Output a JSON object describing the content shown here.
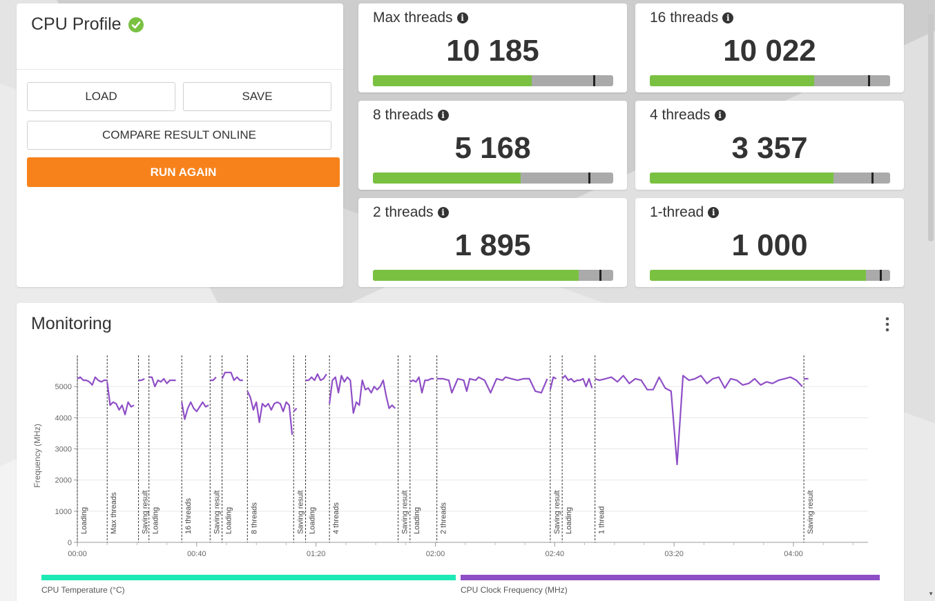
{
  "profile": {
    "title": "CPU Profile",
    "load_label": "LOAD",
    "save_label": "SAVE",
    "compare_label": "COMPARE RESULT ONLINE",
    "run_again_label": "RUN AGAIN"
  },
  "scores": [
    {
      "label": "Max threads",
      "value": "10 185",
      "fill": 0.66,
      "marker": 0.92
    },
    {
      "label": "16 threads",
      "value": "10 022",
      "fill": 0.685,
      "marker": 0.91
    },
    {
      "label": "8 threads",
      "value": "5 168",
      "fill": 0.615,
      "marker": 0.9
    },
    {
      "label": "4 threads",
      "value": "3 357",
      "fill": 0.765,
      "marker": 0.925
    },
    {
      "label": "2 threads",
      "value": "1 895",
      "fill": 0.855,
      "marker": 0.945
    },
    {
      "label": "1-thread",
      "value": "1 000",
      "fill": 0.9,
      "marker": 0.96
    }
  ],
  "monitoring": {
    "title": "Monitoring",
    "legend": [
      {
        "label": "CPU Temperature (°C)",
        "color": "#1de9b6"
      },
      {
        "label": "CPU Clock Frequency (MHz)",
        "color": "#8e4ec6"
      }
    ]
  },
  "colors": {
    "accent_orange": "#f7821b",
    "bar_green": "#7ac142",
    "bar_gray": "#aaaaaa",
    "check_green": "#7ac142",
    "line_purple": "#8e4ec6"
  },
  "chart_data": {
    "type": "line",
    "ylabel": "Frequency (MHz)",
    "xlabel": "",
    "ylim": [
      0,
      6000
    ],
    "xlim_seconds": [
      0,
      265
    ],
    "yticks": [
      0,
      1000,
      2000,
      3000,
      4000,
      5000
    ],
    "xticks": [
      "00:00",
      "00:40",
      "01:20",
      "02:00",
      "02:40",
      "03:20",
      "04:00"
    ],
    "xtick_seconds": [
      0,
      40,
      80,
      120,
      160,
      200,
      240
    ],
    "grid": true,
    "markers": [
      {
        "t": 0,
        "label": "Loading"
      },
      {
        "t": 10,
        "label": "Max threads"
      },
      {
        "t": 20.5,
        "label": "Saving result"
      },
      {
        "t": 24,
        "label": "Loading"
      },
      {
        "t": 35,
        "label": "16 threads"
      },
      {
        "t": 44.5,
        "label": "Saving result"
      },
      {
        "t": 48.5,
        "label": "Loading"
      },
      {
        "t": 57,
        "label": "8 threads"
      },
      {
        "t": 72.5,
        "label": "Saving result"
      },
      {
        "t": 76.5,
        "label": "Loading"
      },
      {
        "t": 84.5,
        "label": "4 threads"
      },
      {
        "t": 107.5,
        "label": "Saving result"
      },
      {
        "t": 111.5,
        "label": "Loading"
      },
      {
        "t": 120.5,
        "label": "2 threads"
      },
      {
        "t": 158.5,
        "label": "Saving result"
      },
      {
        "t": 162.5,
        "label": "Loading"
      },
      {
        "t": 173.5,
        "label": "1 thread"
      },
      {
        "t": 243.5,
        "label": "Saving result"
      }
    ],
    "series": [
      {
        "name": "CPU Clock Frequency (MHz)",
        "segments": [
          {
            "x": [
              0,
              1,
              2,
              3,
              4,
              5,
              6,
              7,
              8,
              9,
              10
            ],
            "y": [
              5250,
              5300,
              5200,
              5200,
              5150,
              5050,
              5300,
              5200,
              5150,
              5200,
              5200
            ]
          },
          {
            "x": [
              10,
              11,
              12,
              13,
              14,
              15,
              16,
              17,
              18,
              19
            ],
            "y": [
              5150,
              4400,
              4500,
              4450,
              4250,
              4400,
              4100,
              4500,
              4350,
              4400
            ]
          },
          {
            "x": [
              20.5,
              21.5,
              22.5
            ],
            "y": [
              5200,
              5200,
              5250
            ]
          },
          {
            "x": [
              24,
              25,
              26,
              27,
              28,
              29,
              30,
              31,
              32,
              33
            ],
            "y": [
              5300,
              5300,
              5000,
              5200,
              5150,
              5250,
              5100,
              5200,
              5200,
              5200
            ]
          },
          {
            "x": [
              35,
              36,
              37,
              38,
              39,
              40,
              41,
              42,
              43,
              44
            ],
            "y": [
              4500,
              3950,
              4300,
              4500,
              4300,
              4200,
              4350,
              4500,
              4350,
              4400
            ]
          },
          {
            "x": [
              44.5,
              45.5,
              46.5
            ],
            "y": [
              5200,
              5200,
              5300
            ]
          },
          {
            "x": [
              48.5,
              49.5,
              50.5,
              51.5,
              52.5,
              53.5,
              54.5,
              55.5
            ],
            "y": [
              5250,
              5450,
              5450,
              5450,
              5200,
              5300,
              5200,
              5200
            ]
          },
          {
            "x": [
              57,
              58,
              59,
              60,
              61,
              62,
              63,
              64,
              65,
              66,
              67,
              68,
              69,
              70,
              71,
              72
            ],
            "y": [
              4850,
              4650,
              4250,
              4500,
              3850,
              4450,
              4350,
              4450,
              4250,
              4450,
              4500,
              4450,
              4200,
              4500,
              4400,
              3450
            ]
          },
          {
            "x": [
              72.5,
              73.5
            ],
            "y": [
              4200,
              4300
            ]
          },
          {
            "x": [
              76.5,
              77.5,
              78.5,
              79.5,
              80.5,
              81.5,
              82.5,
              83.5
            ],
            "y": [
              5200,
              5200,
              5300,
              5200,
              5400,
              5200,
              5250,
              5400
            ]
          },
          {
            "x": [
              84.5,
              85.5,
              86.5,
              87.5,
              88.5,
              89.5,
              90.5,
              91.5,
              92.5,
              93.5,
              94.5,
              95.5,
              96.5,
              97.5,
              98.5,
              99.5,
              100.5,
              101.5,
              102.5,
              103.5,
              104.5,
              105.5,
              106.5
            ],
            "y": [
              4450,
              5200,
              5300,
              4800,
              5350,
              5150,
              5300,
              5200,
              4150,
              4500,
              4400,
              5200,
              4900,
              4950,
              4800,
              5000,
              4900,
              5000,
              5200,
              4700,
              4300,
              4400,
              4300
            ]
          },
          {
            "x": [
              111.5,
              112.5,
              113.5,
              114.5,
              115.5,
              116.5,
              117.5,
              118.5,
              119.5
            ],
            "y": [
              5150,
              5200,
              5150,
              5300,
              4800,
              5200,
              5200,
              5250,
              5250
            ]
          },
          {
            "x": [
              120.5,
              122.5,
              124.5,
              125.5,
              127.5,
              129.5,
              130.5,
              131.5,
              133.5,
              134.5,
              136.5,
              138.5,
              140.5,
              142.5,
              143.5,
              145.5,
              147.5,
              149.5,
              151.5,
              153.5,
              155.5,
              157.5
            ],
            "y": [
              5250,
              5250,
              5200,
              4800,
              5250,
              5200,
              4850,
              5250,
              5200,
              5300,
              5200,
              4800,
              5250,
              5200,
              5300,
              5250,
              5200,
              5250,
              5250,
              4850,
              4800,
              5250
            ]
          },
          {
            "x": [
              158.5,
              159.5,
              160.5
            ],
            "y": [
              4900,
              5300,
              5250
            ]
          },
          {
            "x": [
              162.5,
              163.5,
              164.5,
              165.5,
              166.5,
              167.5,
              168.5,
              169.5,
              170.5,
              171.5,
              172.5
            ],
            "y": [
              5250,
              5350,
              5200,
              5250,
              5150,
              5200,
              5200,
              5250,
              5000,
              5250,
              4950
            ]
          },
          {
            "x": [
              173.5,
              175,
              177,
              179,
              181,
              183,
              185,
              187,
              189,
              191,
              193,
              195,
              197,
              199,
              201,
              203,
              205,
              207,
              209,
              211,
              213,
              215,
              217,
              219,
              221,
              223,
              225,
              227,
              229,
              231,
              233,
              235,
              237,
              239,
              241,
              243
            ],
            "y": [
              5250,
              5200,
              5250,
              5300,
              5150,
              5350,
              5100,
              5250,
              5200,
              4900,
              4900,
              5300,
              4950,
              4850,
              2500,
              5350,
              5200,
              5250,
              5350,
              5100,
              5250,
              5300,
              4950,
              5250,
              5200,
              5050,
              5100,
              5250,
              5050,
              5150,
              5100,
              5200,
              5250,
              5300,
              5200,
              5000
            ]
          },
          {
            "x": [
              243.5,
              245
            ],
            "y": [
              5250,
              5250
            ]
          }
        ]
      }
    ]
  }
}
